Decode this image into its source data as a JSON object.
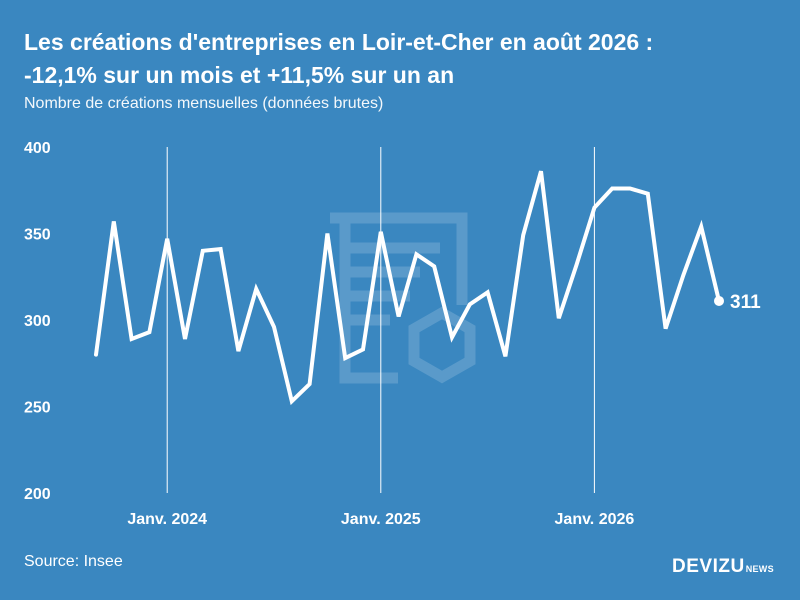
{
  "title_line1": "Les créations d'entreprises en Loir-et-Cher en août 2026 :",
  "title_line2": "-12,1% sur un mois et +11,5% sur un an",
  "subtitle": "Nombre de créations mensuelles (données brutes)",
  "source": "Source: Insee",
  "brand": {
    "name": "DEVIZU",
    "suffix": "NEWS"
  },
  "colors": {
    "background": "#3a87c0",
    "line": "#ffffff",
    "text": "#ffffff"
  },
  "chart_data": {
    "type": "line",
    "title": "Les créations d'entreprises en Loir-et-Cher en août 2026 : -12,1% sur un mois et +11,5% sur un an",
    "subtitle": "Nombre de créations mensuelles (données brutes)",
    "ylim": [
      200,
      400
    ],
    "yticks": [
      "200",
      "250",
      "300",
      "350",
      "400"
    ],
    "x_start": "2023-09",
    "x_ticks": [
      {
        "label": "Janv. 2024",
        "month": "2024-01"
      },
      {
        "label": "Janv. 2025",
        "month": "2025-01"
      },
      {
        "label": "Janv. 2026",
        "month": "2026-01"
      }
    ],
    "grid": "vertical lines at each January",
    "series": [
      {
        "values": [
          280,
          357,
          289,
          293,
          347,
          289,
          340,
          341,
          282,
          318,
          296,
          253,
          263,
          350,
          278,
          283,
          351,
          302,
          338,
          331,
          290,
          309,
          316,
          279,
          349,
          386,
          301,
          332,
          365,
          376,
          376,
          373,
          295,
          326,
          354,
          311
        ],
        "end_label": "311"
      }
    ]
  }
}
